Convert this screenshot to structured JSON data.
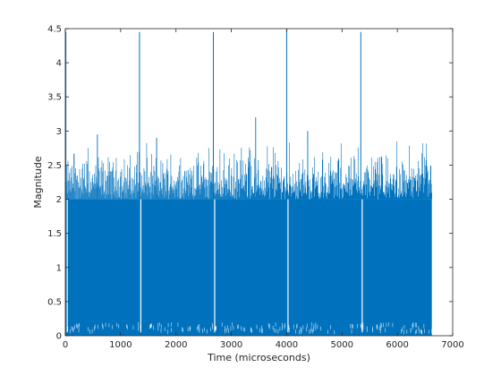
{
  "chart_data": {
    "type": "line",
    "title": "",
    "xlabel": "Time (microseconds)",
    "ylabel": "Magnitude",
    "xlim": [
      0,
      7000
    ],
    "ylim": [
      0,
      4.5
    ],
    "xticks": [
      0,
      1000,
      2000,
      3000,
      4000,
      5000,
      6000,
      7000
    ],
    "yticks": [
      0,
      0.5,
      1,
      1.5,
      2,
      2.5,
      3,
      3.5,
      4,
      4.5
    ],
    "ytick_labels": [
      "0",
      "0.5",
      "1",
      "1.5",
      "2",
      "2.5",
      "3",
      "3.5",
      "4",
      "4.5"
    ],
    "grid": false,
    "series_color": "#0072BD",
    "series": [
      {
        "samples": 6624,
        "x_range": [
          0,
          6623
        ],
        "dense_band": [
          0,
          2.0
        ],
        "noise_ceiling_typical": 2.6,
        "peaks": [
          {
            "x": 10,
            "y": 4.45
          },
          {
            "x": 1340,
            "y": 4.45
          },
          {
            "x": 2675,
            "y": 4.45
          },
          {
            "x": 4000,
            "y": 4.5
          },
          {
            "x": 5340,
            "y": 4.45
          }
        ],
        "notable_values": [
          {
            "x": 580,
            "y": 2.95
          },
          {
            "x": 1650,
            "y": 2.9
          },
          {
            "x": 3440,
            "y": 3.2
          },
          {
            "x": 4380,
            "y": 3.0
          }
        ]
      }
    ]
  }
}
